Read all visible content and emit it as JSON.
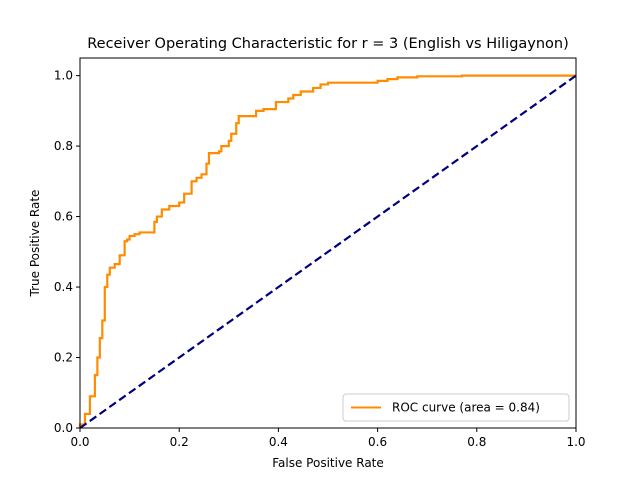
{
  "chart_data": {
    "type": "line",
    "title": "Receiver Operating Characteristic for r = 3  (English vs Hiligaynon)",
    "xlabel": "False Positive Rate",
    "ylabel": "True Positive Rate",
    "xlim": [
      0.0,
      1.0
    ],
    "ylim": [
      0.0,
      1.05
    ],
    "x_ticks": [
      "0.0",
      "0.2",
      "0.4",
      "0.6",
      "0.8",
      "1.0"
    ],
    "y_ticks": [
      "0.0",
      "0.2",
      "0.4",
      "0.6",
      "0.8",
      "1.0"
    ],
    "grid": false,
    "legend_position": "lower right",
    "series": [
      {
        "name": "ROC curve (area = 0.84)",
        "color": "#ff8c00",
        "style": "solid",
        "x": [
          0.0,
          0.0,
          0.01,
          0.01,
          0.02,
          0.02,
          0.03,
          0.03,
          0.035,
          0.035,
          0.04,
          0.04,
          0.045,
          0.045,
          0.05,
          0.05,
          0.055,
          0.055,
          0.06,
          0.06,
          0.07,
          0.07,
          0.08,
          0.08,
          0.09,
          0.09,
          0.095,
          0.095,
          0.1,
          0.1,
          0.11,
          0.11,
          0.12,
          0.12,
          0.15,
          0.15,
          0.155,
          0.155,
          0.165,
          0.165,
          0.18,
          0.18,
          0.2,
          0.2,
          0.21,
          0.21,
          0.225,
          0.225,
          0.235,
          0.235,
          0.245,
          0.245,
          0.255,
          0.255,
          0.26,
          0.26,
          0.28,
          0.28,
          0.285,
          0.285,
          0.3,
          0.3,
          0.305,
          0.305,
          0.315,
          0.315,
          0.32,
          0.32,
          0.355,
          0.355,
          0.37,
          0.37,
          0.395,
          0.395,
          0.42,
          0.42,
          0.43,
          0.43,
          0.445,
          0.445,
          0.47,
          0.47,
          0.485,
          0.485,
          0.5,
          0.5,
          0.6,
          0.6,
          0.62,
          0.62,
          0.64,
          0.64,
          0.68,
          0.68,
          0.77,
          0.77,
          1.0
        ],
        "y": [
          0.0,
          0.01,
          0.01,
          0.04,
          0.04,
          0.09,
          0.09,
          0.15,
          0.15,
          0.2,
          0.2,
          0.255,
          0.255,
          0.305,
          0.305,
          0.4,
          0.4,
          0.435,
          0.435,
          0.455,
          0.455,
          0.465,
          0.465,
          0.49,
          0.49,
          0.53,
          0.53,
          0.535,
          0.535,
          0.545,
          0.545,
          0.55,
          0.55,
          0.555,
          0.555,
          0.585,
          0.585,
          0.6,
          0.6,
          0.62,
          0.62,
          0.63,
          0.63,
          0.64,
          0.64,
          0.665,
          0.665,
          0.7,
          0.7,
          0.71,
          0.71,
          0.72,
          0.72,
          0.75,
          0.75,
          0.78,
          0.78,
          0.785,
          0.785,
          0.8,
          0.8,
          0.815,
          0.815,
          0.835,
          0.835,
          0.865,
          0.865,
          0.885,
          0.885,
          0.9,
          0.9,
          0.905,
          0.905,
          0.925,
          0.925,
          0.935,
          0.935,
          0.945,
          0.945,
          0.955,
          0.955,
          0.965,
          0.965,
          0.975,
          0.975,
          0.98,
          0.98,
          0.985,
          0.985,
          0.99,
          0.99,
          0.995,
          0.995,
          0.998,
          0.998,
          1.0,
          1.0
        ]
      },
      {
        "name": "",
        "color": "#000080",
        "style": "dashed",
        "x": [
          0.0,
          1.0
        ],
        "y": [
          0.0,
          1.0
        ]
      }
    ]
  }
}
